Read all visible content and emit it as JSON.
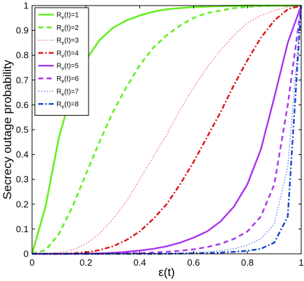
{
  "chart_data": {
    "type": "line",
    "xlabel": "ε(t)",
    "ylabel": "Secrecy outage probability",
    "xlim": [
      0,
      1
    ],
    "ylim": [
      0,
      1
    ],
    "xticks": [
      0,
      0.2,
      0.4,
      0.6,
      0.8,
      1
    ],
    "xtick_labels": [
      "0",
      "0.2",
      "0.4",
      "0.6",
      "0.8",
      "1"
    ],
    "yticks": [
      0,
      0.1,
      0.2,
      0.3,
      0.4,
      0.5,
      0.6,
      0.7,
      0.8,
      0.9,
      1
    ],
    "ytick_labels": [
      "0",
      "0.1",
      "0.2",
      "0.3",
      "0.4",
      "0.5",
      "0.6",
      "0.7",
      "0.8",
      "0.9",
      "1"
    ],
    "grid": false,
    "legend_position": "top-left",
    "x": [
      0,
      0.05,
      0.1,
      0.15,
      0.2,
      0.25,
      0.3,
      0.35,
      0.4,
      0.45,
      0.5,
      0.55,
      0.6,
      0.65,
      0.7,
      0.75,
      0.8,
      0.85,
      0.9,
      0.95,
      1
    ],
    "series": [
      {
        "name_main": "R",
        "name_sub": "e",
        "name_rest": "(t)=1",
        "color": "#66ee22",
        "dash": "",
        "width": 2.6,
        "values": [
          0,
          0.19,
          0.47,
          0.66,
          0.78,
          0.86,
          0.91,
          0.94,
          0.96,
          0.975,
          0.985,
          0.99,
          0.994,
          0.996,
          0.998,
          0.999,
          1,
          1,
          1,
          1,
          1
        ]
      },
      {
        "name_main": "R",
        "name_sub": "e",
        "name_rest": "(t)=2",
        "color": "#66ee22",
        "dash": "7,5",
        "width": 2.6,
        "values": [
          0,
          0.015,
          0.08,
          0.19,
          0.32,
          0.45,
          0.57,
          0.67,
          0.76,
          0.83,
          0.88,
          0.92,
          0.95,
          0.97,
          0.98,
          0.99,
          0.995,
          0.998,
          1,
          1,
          1
        ]
      },
      {
        "name_main": "R",
        "name_sub": "e",
        "name_rest": "(t)=3",
        "color": "#ee5555",
        "dash": "1.5,2.5",
        "width": 1.2,
        "values": [
          0,
          0,
          0.005,
          0.015,
          0.04,
          0.08,
          0.14,
          0.21,
          0.3,
          0.39,
          0.48,
          0.58,
          0.67,
          0.75,
          0.82,
          0.88,
          0.93,
          0.96,
          0.98,
          0.995,
          1
        ]
      },
      {
        "name_main": "R",
        "name_sub": "e",
        "name_rest": "(t)=4",
        "color": "#dd1111",
        "dash": "7,3,2,3",
        "width": 2.4,
        "values": [
          0,
          0,
          0,
          0.002,
          0.006,
          0.015,
          0.03,
          0.055,
          0.09,
          0.14,
          0.2,
          0.28,
          0.37,
          0.47,
          0.57,
          0.68,
          0.78,
          0.87,
          0.94,
          0.985,
          1
        ]
      },
      {
        "name_main": "R",
        "name_sub": "e",
        "name_rest": "(t)=5",
        "color": "#aa33ee",
        "dash": "",
        "width": 2.4,
        "values": [
          0,
          0,
          0,
          0,
          0.001,
          0.002,
          0.004,
          0.008,
          0.013,
          0.02,
          0.03,
          0.045,
          0.065,
          0.09,
          0.13,
          0.19,
          0.28,
          0.42,
          0.63,
          0.85,
          1
        ]
      },
      {
        "name_main": "R",
        "name_sub": "e",
        "name_rest": "(t)=6",
        "color": "#aa33ee",
        "dash": "7,5",
        "width": 2.4,
        "values": [
          0,
          0,
          0,
          0,
          0,
          0,
          0.001,
          0.002,
          0.003,
          0.005,
          0.008,
          0.012,
          0.018,
          0.027,
          0.04,
          0.06,
          0.09,
          0.15,
          0.28,
          0.6,
          1
        ]
      },
      {
        "name_main": "R",
        "name_sub": "e",
        "name_rest": "(t)=7",
        "color": "#5577ee",
        "dash": "1.5,2.5",
        "width": 1.4,
        "values": [
          0,
          0,
          0,
          0,
          0,
          0,
          0,
          0,
          0,
          0.001,
          0.002,
          0.003,
          0.005,
          0.008,
          0.012,
          0.02,
          0.035,
          0.06,
          0.12,
          0.35,
          1
        ]
      },
      {
        "name_main": "R",
        "name_sub": "e",
        "name_rest": "(t)=8",
        "color": "#1144cc",
        "dash": "7,3,2,3",
        "width": 2.4,
        "values": [
          0,
          0,
          0,
          0,
          0,
          0,
          0,
          0,
          0,
          0,
          0,
          0.001,
          0.002,
          0.003,
          0.005,
          0.008,
          0.012,
          0.02,
          0.045,
          0.15,
          1
        ]
      }
    ]
  }
}
